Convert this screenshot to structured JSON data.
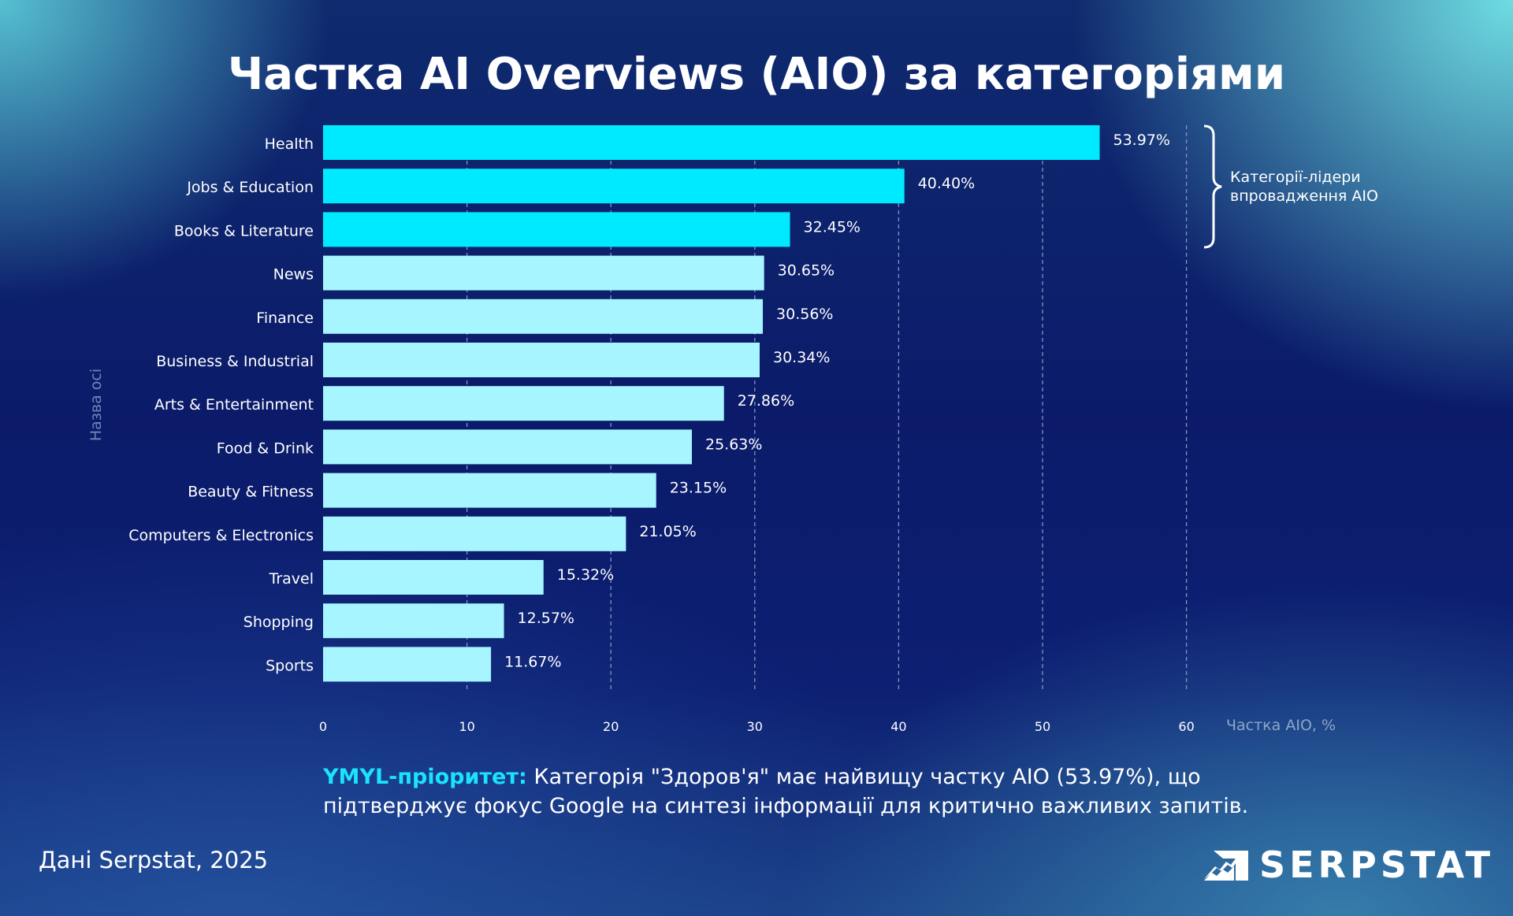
{
  "title": "Частка AI Overviews (AIO) за категоріями",
  "chart_data": {
    "type": "bar",
    "orientation": "horizontal",
    "categories": [
      "Health",
      "Jobs & Education",
      "Books & Literature",
      "News",
      "Finance",
      "Business & Industrial",
      "Arts & Entertainment",
      "Food & Drink",
      "Beauty & Fitness",
      "Computers & Electronics",
      "Travel",
      "Shopping",
      "Sports"
    ],
    "values": [
      53.97,
      40.4,
      32.45,
      30.65,
      30.56,
      30.34,
      27.86,
      25.63,
      23.15,
      21.05,
      15.32,
      12.57,
      11.67
    ],
    "value_labels": [
      "53.97%",
      "40.40%",
      "32.45%",
      "30.65%",
      "30.56%",
      "30.34%",
      "27.86%",
      "25.63%",
      "23.15%",
      "21.05%",
      "15.32%",
      "12.57%",
      "11.67%"
    ],
    "highlighted_count": 3,
    "colors": {
      "highlight": "#00eaff",
      "normal": "#a6f5ff",
      "grid": "#7f93c4"
    },
    "xlabel": "Частка AIO, %",
    "ylabel": "Назва осі",
    "xlim": [
      0,
      60
    ],
    "xticks": [
      "0",
      "10",
      "20",
      "30",
      "40",
      "50",
      "60"
    ],
    "grid": "vertical dashed",
    "annotation": {
      "line1": "Категорії-лідери",
      "line2": "впровадження AIO"
    }
  },
  "note": {
    "highlight": "YMYL-пріоритет:",
    "text": " Категорія \"Здоров'я\" має найвищу частку AIO (53.97%), що",
    "line2": "підтверджує фокус Google на синтезі інформації для критично важливих запитів."
  },
  "source": "Дані Serpstat, 2025",
  "logo": "SERPSTAT"
}
